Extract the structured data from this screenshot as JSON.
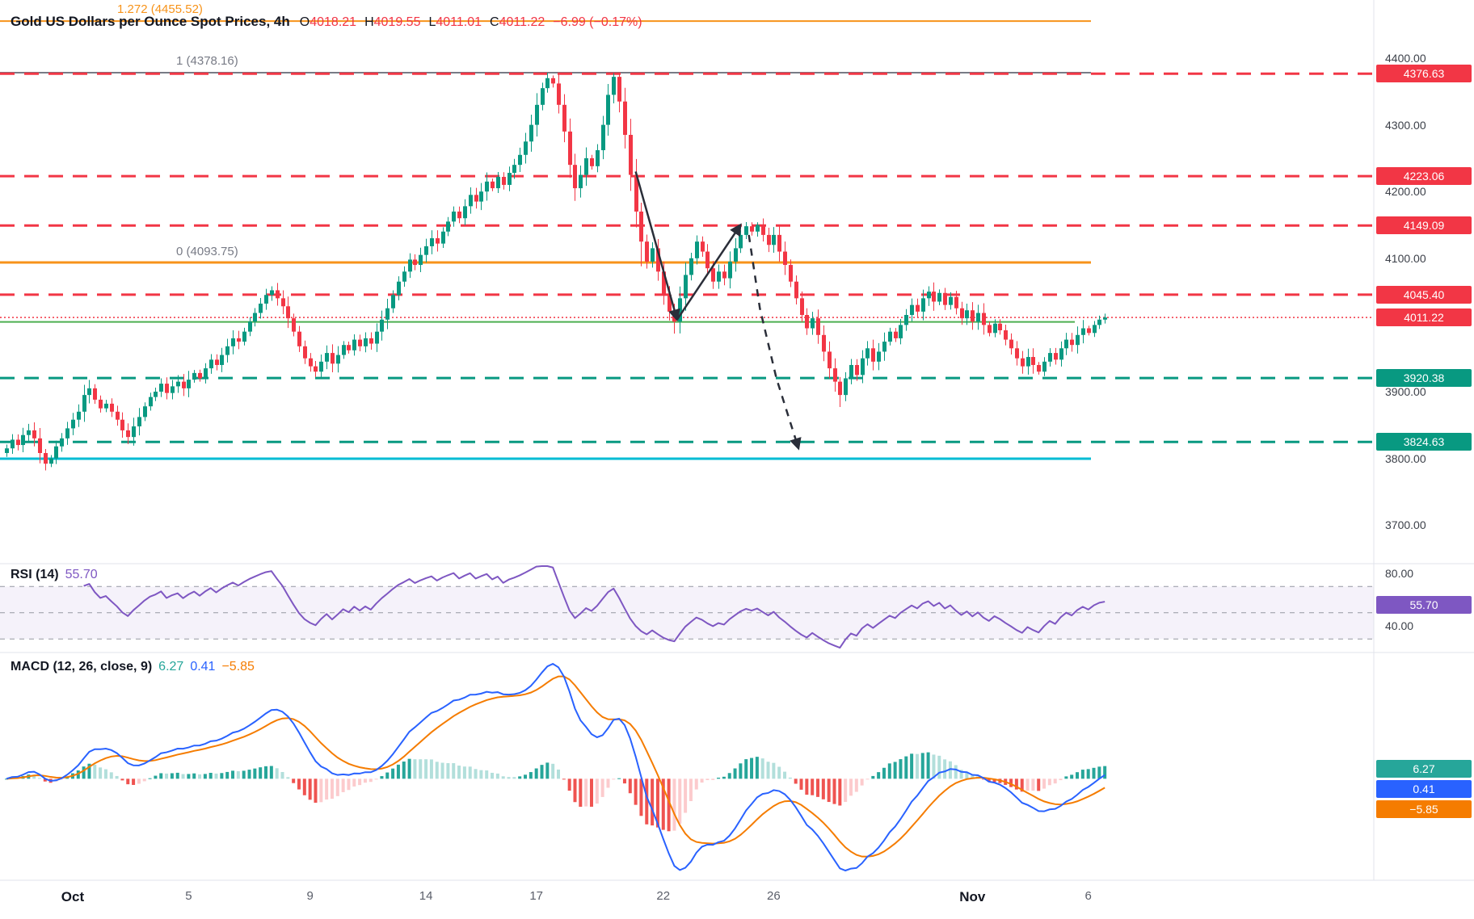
{
  "header": {
    "title": "Gold US Dollars per Ounce Spot Prices, 4h",
    "ohlc": {
      "o_label": "O",
      "o": "4018.21",
      "h_label": "H",
      "h": "4019.55",
      "l_label": "L",
      "l": "4011.01",
      "c_label": "C",
      "c": "4011.22",
      "change": "−6.99 (−0.17%)"
    }
  },
  "colors": {
    "up": "#089981",
    "down": "#f23645",
    "resistance": "#f23645",
    "support": "#089981",
    "fib_orange": "#f7931a",
    "fib_gray": "#787b86",
    "cyan_level": "#00bcd4",
    "green_trend": "#4caf50",
    "rsi": "#7e57c2",
    "macd_line": "#2962ff",
    "macd_signal": "#f57c00",
    "hist_up": "#26a69a",
    "hist_up_weak": "#b2dfdb",
    "hist_down": "#ef5350",
    "hist_down_weak": "#fccbcd",
    "divider": "#e0e3eb",
    "annotation": "#2a2e39"
  },
  "chart_data": {
    "type": "candlestick",
    "symbol": "Gold US Dollars per Ounce Spot Prices",
    "interval": "4h",
    "y_ticks": [
      {
        "text": "4400.00",
        "price": 4400
      },
      {
        "text": "4300.00",
        "price": 4300
      },
      {
        "text": "4200.00",
        "price": 4200
      },
      {
        "text": "4100.00",
        "price": 4100
      },
      {
        "text": "3900.00",
        "price": 3900
      },
      {
        "text": "3800.00",
        "price": 3800
      },
      {
        "text": "3700.00",
        "price": 3700
      }
    ],
    "x_ticks": [
      {
        "label": "Oct",
        "index": 12,
        "bold": true
      },
      {
        "label": "5",
        "index": 33,
        "bold": false
      },
      {
        "label": "9",
        "index": 55,
        "bold": false
      },
      {
        "label": "14",
        "index": 76,
        "bold": false
      },
      {
        "label": "17",
        "index": 96,
        "bold": false
      },
      {
        "label": "22",
        "index": 119,
        "bold": false
      },
      {
        "label": "26",
        "index": 139,
        "bold": false
      },
      {
        "label": "Nov",
        "index": 175,
        "bold": true
      },
      {
        "label": "6",
        "index": 196,
        "bold": false
      }
    ],
    "levels": [
      {
        "name": "fib-1.272",
        "price": 4455.52,
        "label": "1.272 (4455.52)",
        "color": "#f7931a",
        "style": "solid",
        "width": 2,
        "extent": 1350
      },
      {
        "name": "fib-1",
        "price": 4378.16,
        "label": "1 (4378.16)",
        "color": "#787b86",
        "style": "solid",
        "width": 2,
        "extent": 1350
      },
      {
        "name": "resistance-4376",
        "price": 4376.63,
        "badge": "4376.63",
        "color": "#f23645",
        "style": "dashed",
        "width": 3,
        "extent": "axis"
      },
      {
        "name": "resistance-4223",
        "price": 4223.06,
        "badge": "4223.06",
        "color": "#f23645",
        "style": "dashed",
        "width": 3,
        "extent": "axis"
      },
      {
        "name": "resistance-4149",
        "price": 4149.09,
        "badge": "4149.09",
        "color": "#f23645",
        "style": "dashed",
        "width": 3,
        "extent": "axis"
      },
      {
        "name": "fib-0",
        "price": 4093.75,
        "label": "0 (4093.75)",
        "color": "#f7931a",
        "style": "solid",
        "width": 3,
        "extent": 1350
      },
      {
        "name": "resistance-4045",
        "price": 4045.4,
        "badge": "4045.40",
        "color": "#f23645",
        "style": "dashed",
        "width": 3,
        "extent": "axis"
      },
      {
        "name": "last-price",
        "price": 4011.22,
        "badge": "4011.22",
        "color": "#f23645",
        "style": "dotted",
        "width": 1.5,
        "extent": "axis"
      },
      {
        "name": "green-trend-line",
        "price": 4004.5,
        "color": "#4caf50",
        "style": "solid",
        "width": 2,
        "extent": 1330
      },
      {
        "name": "support-3920",
        "price": 3920.38,
        "badge": "3920.38",
        "color": "#089981",
        "style": "dashed",
        "width": 3,
        "extent": "axis"
      },
      {
        "name": "support-3824",
        "price": 3824.63,
        "badge": "3824.63",
        "color": "#089981",
        "style": "dashed",
        "width": 3,
        "extent": "axis"
      },
      {
        "name": "cyan-level",
        "price": 3799.5,
        "color": "#00bcd4",
        "style": "solid",
        "width": 3,
        "extent": 1350
      }
    ],
    "candles": {
      "first_open": 3808,
      "closes": [
        3815,
        3828,
        3820,
        3835,
        3842,
        3830,
        3808,
        3792,
        3800,
        3818,
        3830,
        3845,
        3858,
        3870,
        3895,
        3905,
        3888,
        3875,
        3882,
        3870,
        3858,
        3842,
        3832,
        3848,
        3862,
        3878,
        3892,
        3900,
        3912,
        3898,
        3908,
        3915,
        3905,
        3918,
        3928,
        3920,
        3935,
        3948,
        3940,
        3955,
        3968,
        3980,
        3975,
        3990,
        4005,
        4018,
        4032,
        4045,
        4052,
        4040,
        4028,
        4010,
        3990,
        3968,
        3950,
        3938,
        3930,
        3945,
        3958,
        3942,
        3955,
        3970,
        3962,
        3978,
        3968,
        3980,
        3972,
        3990,
        4008,
        4025,
        4045,
        4065,
        4080,
        4098,
        4090,
        4105,
        4118,
        4130,
        4122,
        4140,
        4155,
        4170,
        4160,
        4178,
        4195,
        4185,
        4200,
        4215,
        4205,
        4222,
        4210,
        4228,
        4240,
        4255,
        4275,
        4300,
        4330,
        4355,
        4370,
        4362,
        4330,
        4290,
        4240,
        4205,
        4225,
        4250,
        4238,
        4262,
        4300,
        4345,
        4372,
        4335,
        4285,
        4225,
        4170,
        4125,
        4095,
        4115,
        4080,
        4045,
        4020,
        4005,
        4040,
        4075,
        4100,
        4125,
        4110,
        4085,
        4065,
        4080,
        4070,
        4095,
        4115,
        4135,
        4148,
        4140,
        4150,
        4135,
        4120,
        4135,
        4110,
        4090,
        4065,
        4040,
        4015,
        3995,
        4010,
        3985,
        3960,
        3935,
        3915,
        3895,
        3920,
        3940,
        3925,
        3950,
        3965,
        3945,
        3960,
        3975,
        3990,
        3980,
        4000,
        4015,
        4030,
        4020,
        4040,
        4050,
        4035,
        4048,
        4030,
        4042,
        4025,
        4010,
        4022,
        4005,
        4018,
        4000,
        3988,
        4002,
        3992,
        3978,
        3965,
        3950,
        3938,
        3952,
        3940,
        3930,
        3945,
        3958,
        3948,
        3965,
        3978,
        3970,
        3985,
        3995,
        3988,
        4000,
        4008,
        4011.22
      ],
      "wick_overrides": [
        [
          7,
          "l",
          3782
        ],
        [
          48,
          "h",
          4058
        ],
        [
          98,
          "h",
          4378.16
        ],
        [
          99,
          "h",
          4374
        ],
        [
          103,
          "l",
          4186
        ],
        [
          110,
          "h",
          4377.5
        ],
        [
          115,
          "l",
          4088
        ],
        [
          121,
          "l",
          3987
        ],
        [
          136,
          "h",
          4154
        ],
        [
          151,
          "l",
          3877
        ],
        [
          167,
          "h",
          4058
        ]
      ],
      "last_close": 4011.22
    },
    "indicators": {
      "rsi": {
        "label": "RSI (14)",
        "period": 14,
        "value": 55.7,
        "value_label": "55.70",
        "guides": [
          70,
          50,
          30
        ],
        "axis_labels": [
          {
            "text": "80.00",
            "value": 80
          },
          {
            "text": "40.00",
            "value": 40
          }
        ]
      },
      "macd": {
        "label": "MACD (12, 26, close, 9)",
        "fast": 12,
        "slow": 26,
        "source": "close",
        "signal_period": 9,
        "values": {
          "hist": 6.27,
          "macd": 0.41,
          "signal": -5.85
        },
        "value_labels": {
          "hist": "6.27",
          "macd": "0.41",
          "signal": "−5.85"
        },
        "badge_colors": [
          "#26a69a",
          "#2962ff",
          "#f57c00"
        ]
      }
    },
    "annotations": [
      {
        "name": "impulse-down-arrow",
        "style": "solid",
        "points": [
          [
            114,
            4230
          ],
          [
            121.5,
            4008
          ]
        ]
      },
      {
        "name": "rebound-up-arrow",
        "style": "solid",
        "points": [
          [
            121.5,
            4008
          ],
          [
            133,
            4150
          ]
        ]
      },
      {
        "name": "projected-drop-arrow",
        "style": "dashed",
        "points": [
          [
            134.5,
            4135
          ],
          [
            136.5,
            4025
          ],
          [
            139.5,
            3920
          ],
          [
            143.5,
            3815
          ]
        ]
      }
    ]
  }
}
